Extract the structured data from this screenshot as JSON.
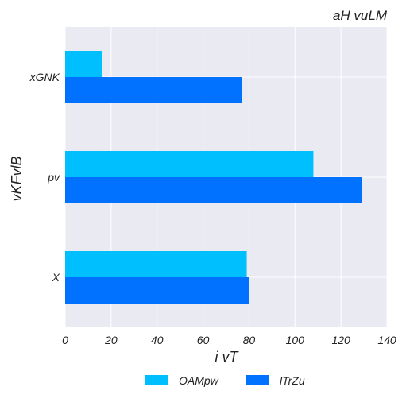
{
  "chart_data": {
    "type": "bar",
    "orientation": "horizontal",
    "title": "aH vuLM",
    "xlabel": "i vT",
    "ylabel": "vKFvlB",
    "categories": [
      "xGNK",
      "pv",
      "X"
    ],
    "series": [
      {
        "name": "OAMpw",
        "color": "#00BFFF",
        "values": [
          16,
          108,
          79
        ]
      },
      {
        "name": "lTrZu",
        "color": "#0072FF",
        "values": [
          77,
          129,
          80
        ]
      }
    ],
    "xlim": [
      0,
      140
    ],
    "xticks": [
      0,
      20,
      40,
      60,
      80,
      100,
      120,
      140
    ],
    "grid": true,
    "legend_position": "bottom-center",
    "background": "#EAEAF2"
  }
}
